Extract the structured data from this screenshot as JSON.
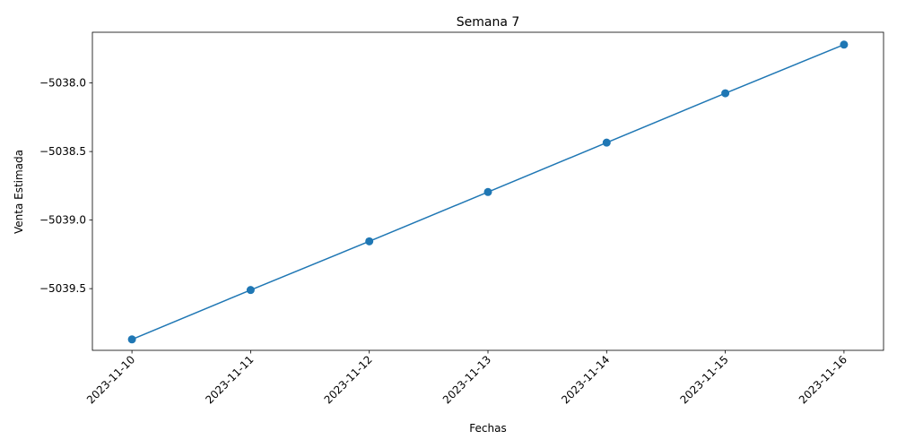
{
  "chart_data": {
    "type": "line",
    "title": "Semana 7",
    "xlabel": "Fechas",
    "ylabel": "Venta Estimada",
    "x": [
      "2023-11-10",
      "2023-11-11",
      "2023-11-12",
      "2023-11-13",
      "2023-11-14",
      "2023-11-15",
      "2023-11-16"
    ],
    "series": [
      {
        "values": [
          -5039.87,
          -5039.51,
          -5039.155,
          -5038.795,
          -5038.435,
          -5038.075,
          -5037.72
        ],
        "color": "#1f77b4",
        "marker": "circle"
      }
    ],
    "ylim": [
      -5039.95,
      -5037.63
    ],
    "y_ticks": [
      -5039.5,
      -5039.0,
      -5038.5,
      -5038.0
    ],
    "y_tick_labels": [
      "−5039.5",
      "−5039.0",
      "−5038.5",
      "−5038.0"
    ],
    "x_tick_rotation": 45,
    "grid": false,
    "legend": "none"
  }
}
